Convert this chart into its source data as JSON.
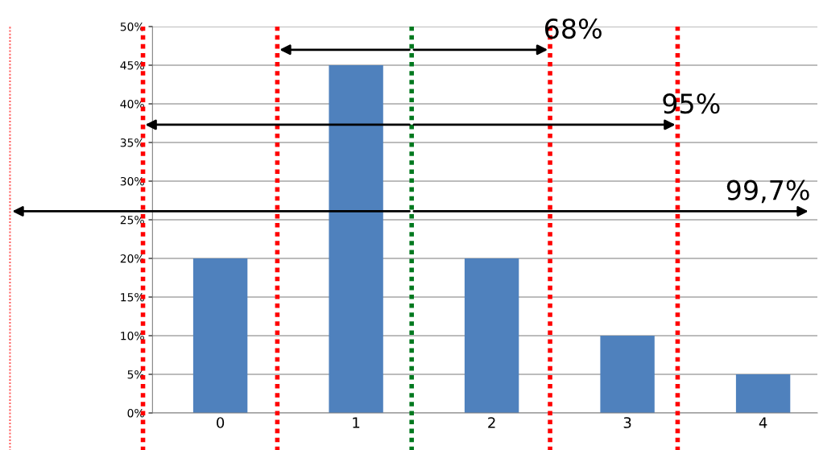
{
  "chart_data": {
    "type": "bar",
    "x": [
      0,
      1,
      2,
      3,
      4
    ],
    "xticks": [
      0,
      1,
      2,
      3,
      4
    ],
    "xlim": [
      -1.6,
      4.4
    ],
    "values": [
      20,
      45,
      20,
      10,
      5
    ],
    "color": "#4f81bd",
    "ylim": [
      0,
      50
    ],
    "yticks": [
      {
        "value": 0,
        "label": "0%"
      },
      {
        "value": 5,
        "label": "5%"
      },
      {
        "value": 10,
        "label": "10%"
      },
      {
        "value": 15,
        "label": "15%"
      },
      {
        "value": 20,
        "label": "20%"
      },
      {
        "value": 25,
        "label": "25%"
      },
      {
        "value": 30,
        "label": "30%"
      },
      {
        "value": 35,
        "label": "35%"
      },
      {
        "value": 40,
        "label": "40%"
      },
      {
        "value": 45,
        "label": "45%"
      },
      {
        "value": 50,
        "label": "50%"
      }
    ],
    "grid": "y",
    "ref_lines": [
      {
        "axis": "x",
        "value": 1.41,
        "color": "#00781e",
        "line_style": "dotted"
      },
      {
        "axis": "x",
        "value": 0.42,
        "color": "#ff0000",
        "line_style": "dotted"
      },
      {
        "axis": "x",
        "value": 2.43,
        "color": "#ff0000",
        "line_style": "dotted"
      },
      {
        "axis": "x",
        "value": -0.57,
        "color": "#ff0000",
        "line_style": "dotted"
      },
      {
        "axis": "x",
        "value": 3.37,
        "color": "#ff0000",
        "line_style": "dotted"
      },
      {
        "axis": "x",
        "value": -1.55,
        "color": "#ff6060",
        "line_style": "dotted"
      }
    ],
    "annotations": [
      "68%",
      "95%",
      "99,7%"
    ]
  }
}
